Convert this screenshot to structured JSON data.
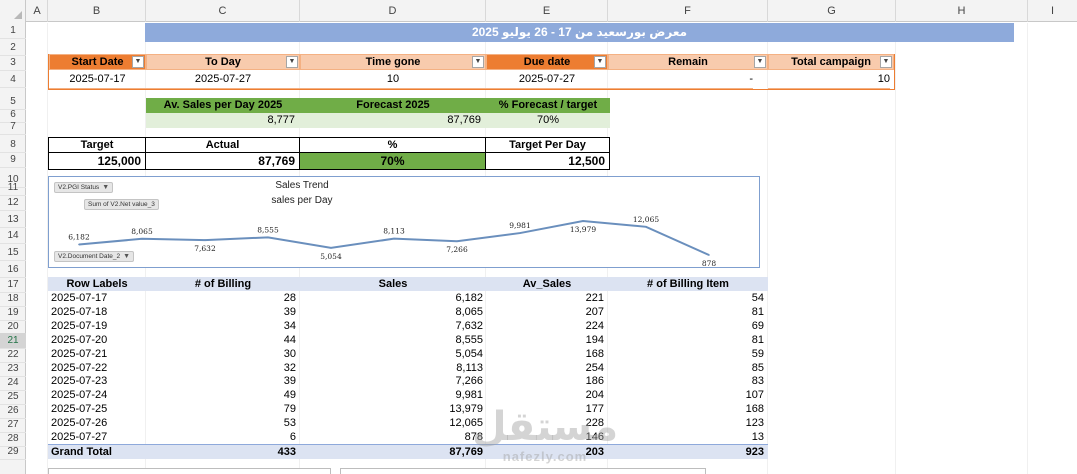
{
  "columns": [
    "A",
    "B",
    "C",
    "D",
    "E",
    "F",
    "G",
    "H",
    "I"
  ],
  "rows": [
    "1",
    "2",
    "3",
    "4",
    "5",
    "6",
    "7",
    "8",
    "9",
    "10",
    "11",
    "12",
    "13",
    "14",
    "15",
    "16",
    "17",
    "18",
    "19",
    "20",
    "21",
    "22",
    "23",
    "24",
    "25",
    "26",
    "27",
    "28",
    "29"
  ],
  "selected_row": "21",
  "banner": {
    "title": "معرض بورسعيد من 17 - 26  يوليو 2025"
  },
  "info": {
    "headers": [
      "Start Date",
      "To Day",
      "Time gone",
      "Due date",
      "Remain",
      "Total campaign"
    ],
    "values": [
      "2025-07-17",
      "2025-07-27",
      "10",
      "2025-07-27",
      "-",
      "10"
    ]
  },
  "forecast": {
    "headers": [
      "Av. Sales per Day 2025",
      "Forecast 2025",
      "% Forecast / target"
    ],
    "values": [
      "8,777",
      "87,769",
      "70%"
    ]
  },
  "target": {
    "headers": [
      "Target",
      "Actual",
      "%",
      "Target Per Day"
    ],
    "values": [
      "125,000",
      "87,769",
      "70%",
      "12,500"
    ]
  },
  "chart_fields": {
    "filter": "V2.PGI Status",
    "values": "Sum of V2.Net value_3",
    "axis": "V2.Document Date_2"
  },
  "chart_data": {
    "type": "line",
    "title": "Sales Trend",
    "subtitle": "sales per Day",
    "categories": [
      "2025-07-17",
      "2025-07-18",
      "2025-07-19",
      "2025-07-20",
      "2025-07-21",
      "2025-07-22",
      "2025-07-23",
      "2025-07-24",
      "2025-07-25",
      "2025-07-26",
      "2025-07-27"
    ],
    "series": [
      {
        "values": [
          6182,
          8065,
          7632,
          8555,
          5054,
          8113,
          7266,
          9981,
          13979,
          12065,
          878
        ]
      }
    ],
    "data_labels": [
      "6,182",
      "8,065",
      "7,632",
      "8,555",
      "5,054",
      "8,113",
      "7,266",
      "9,981",
      "13,979",
      "12,065",
      "878"
    ],
    "line_color": "#6a8fbd"
  },
  "pivot": {
    "headers": [
      "Row Labels",
      "# of Billing",
      "Sales",
      "Av_Sales",
      "# of Billing Item"
    ],
    "rows": [
      [
        "2025-07-17",
        "28",
        "6,182",
        "221",
        "54"
      ],
      [
        "2025-07-18",
        "39",
        "8,065",
        "207",
        "81"
      ],
      [
        "2025-07-19",
        "34",
        "7,632",
        "224",
        "69"
      ],
      [
        "2025-07-20",
        "44",
        "8,555",
        "194",
        "81"
      ],
      [
        "2025-07-21",
        "30",
        "5,054",
        "168",
        "59"
      ],
      [
        "2025-07-22",
        "32",
        "8,113",
        "254",
        "85"
      ],
      [
        "2025-07-23",
        "39",
        "7,266",
        "186",
        "83"
      ],
      [
        "2025-07-24",
        "49",
        "9,981",
        "204",
        "107"
      ],
      [
        "2025-07-25",
        "79",
        "13,979",
        "177",
        "168"
      ],
      [
        "2025-07-26",
        "53",
        "12,065",
        "228",
        "123"
      ],
      [
        "2025-07-27",
        "6",
        "878",
        "146",
        "13"
      ]
    ],
    "total": [
      "Grand Total",
      "433",
      "87,769",
      "203",
      "923"
    ]
  },
  "watermark": {
    "text": "مستقل",
    "domain": "nafezly.com"
  }
}
